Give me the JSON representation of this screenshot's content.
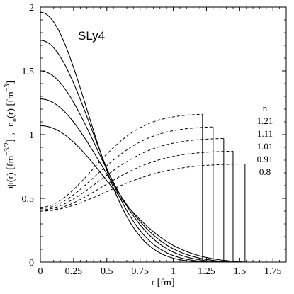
{
  "chart_data": {
    "type": "line",
    "title": "SLy4",
    "xlabel": "r  [fm]",
    "ylabel_parts": {
      "psi": "ψ(r) [fm",
      "psi_exp": "−3/2",
      "psi_close": "]",
      "sep": ",",
      "n": "n",
      "n_sub": "n",
      "n_arg": "(r) [fm",
      "n_exp": "−3",
      "n_close": "]"
    },
    "xlim": [
      0,
      1.85
    ],
    "ylim": [
      0,
      2
    ],
    "x_ticks": [
      0,
      0.25,
      0.5,
      0.75,
      1,
      1.25,
      1.5,
      1.75
    ],
    "x_tick_labels": [
      "0",
      "0.25",
      "0.5",
      "0.75",
      "1",
      "1.25",
      "1.5",
      "1.75"
    ],
    "y_ticks": [
      0,
      0.5,
      1,
      1.5,
      2
    ],
    "y_tick_labels": [
      "0",
      "0.5",
      "1",
      "1.5",
      "2"
    ],
    "grid": false,
    "legend": {
      "title": "n",
      "placement": "right",
      "entries": [
        "1.21",
        "1.11",
        "1.01",
        "0.91",
        "0.8"
      ]
    },
    "series": [
      {
        "n": "1.21",
        "R": 1.22,
        "psi0": 1.96,
        "width": 0.5,
        "nd0": 0.43,
        "nd_end": 1.16
      },
      {
        "n": "1.11",
        "R": 1.3,
        "psi0": 1.74,
        "width": 0.54,
        "nd0": 0.42,
        "nd_end": 1.06
      },
      {
        "n": "1.01",
        "R": 1.38,
        "psi0": 1.5,
        "width": 0.59,
        "nd0": 0.41,
        "nd_end": 0.97
      },
      {
        "n": "0.91",
        "R": 1.45,
        "psi0": 1.28,
        "width": 0.64,
        "nd0": 0.4,
        "nd_end": 0.87
      },
      {
        "n": "0.8",
        "R": 1.54,
        "psi0": 1.07,
        "width": 0.7,
        "nd0": 0.4,
        "nd_end": 0.77
      }
    ]
  }
}
